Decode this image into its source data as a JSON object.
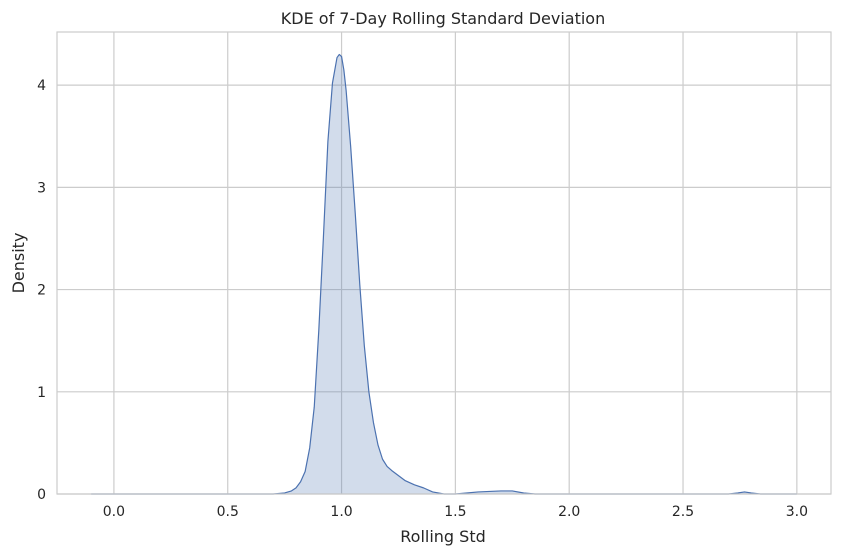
{
  "chart_data": {
    "type": "area",
    "title": "KDE of 7-Day Rolling Standard Deviation",
    "xlabel": "Rolling Std",
    "ylabel": "Density",
    "xlim": [
      -0.25,
      3.15
    ],
    "ylim": [
      0,
      4.52
    ],
    "xticks": [
      0.0,
      0.5,
      1.0,
      1.5,
      2.0,
      2.5,
      3.0
    ],
    "xtick_labels": [
      "0.0",
      "0.5",
      "1.0",
      "1.5",
      "2.0",
      "2.5",
      "3.0"
    ],
    "yticks": [
      0,
      1,
      2,
      3,
      4
    ],
    "ytick_labels": [
      "0",
      "1",
      "2",
      "3",
      "4"
    ],
    "grid": true,
    "legend": "none",
    "colors": {
      "line": "#4c72b0",
      "fill": "#4c72b0",
      "fill_opacity": 0.25,
      "grid": "#cccccc",
      "text": "#262626"
    },
    "series": [
      {
        "x": [
          -0.1,
          0.0,
          0.5,
          0.7,
          0.75,
          0.78,
          0.8,
          0.82,
          0.84,
          0.86,
          0.88,
          0.9,
          0.92,
          0.94,
          0.96,
          0.98,
          0.99,
          1.0,
          1.01,
          1.02,
          1.04,
          1.06,
          1.08,
          1.1,
          1.12,
          1.14,
          1.16,
          1.18,
          1.2,
          1.22,
          1.25,
          1.28,
          1.32,
          1.36,
          1.4,
          1.45,
          1.5,
          1.55,
          1.6,
          1.65,
          1.7,
          1.75,
          1.8,
          1.85,
          2.0,
          2.5,
          2.7,
          2.74,
          2.77,
          2.8,
          2.84,
          3.0
        ],
        "y": [
          0.0,
          0.0,
          0.0,
          0.0,
          0.01,
          0.03,
          0.06,
          0.12,
          0.22,
          0.45,
          0.85,
          1.6,
          2.5,
          3.45,
          4.02,
          4.27,
          4.3,
          4.28,
          4.15,
          3.95,
          3.4,
          2.75,
          2.05,
          1.45,
          1.0,
          0.7,
          0.48,
          0.34,
          0.27,
          0.23,
          0.18,
          0.13,
          0.09,
          0.06,
          0.02,
          0.0,
          0.0,
          0.01,
          0.02,
          0.025,
          0.03,
          0.03,
          0.01,
          0.0,
          0.0,
          0.0,
          0.0,
          0.01,
          0.02,
          0.01,
          0.0,
          0.0
        ]
      }
    ]
  }
}
